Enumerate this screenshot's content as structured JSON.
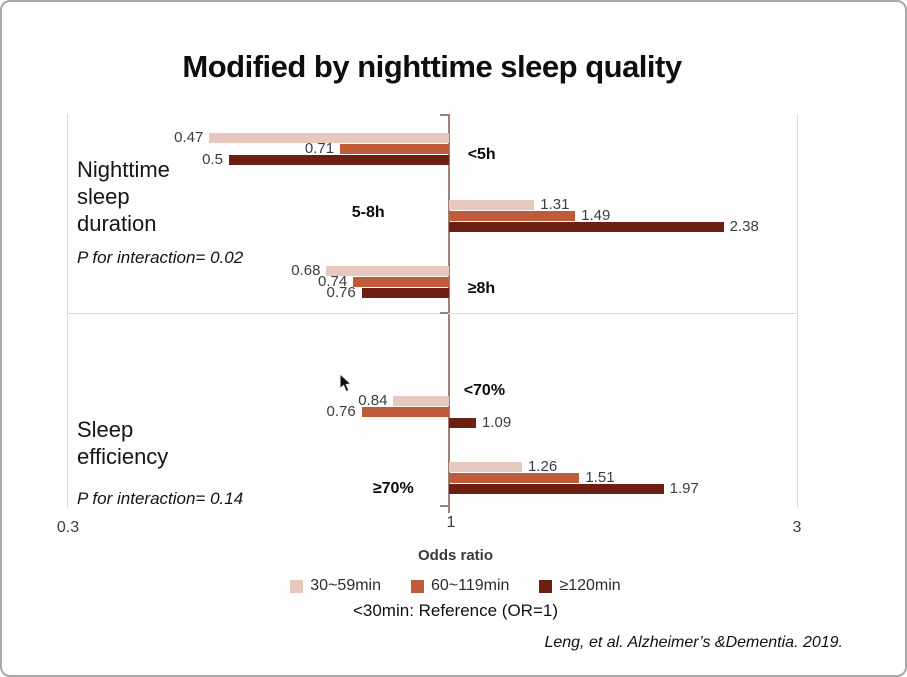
{
  "slide": {
    "title": "Modified by nighttime sleep quality",
    "note_reference": "<30min: Reference (OR=1)",
    "citation": "Leng, et al. Alzheimer’s &Dementia. 2019."
  },
  "panels": [
    {
      "label": "Nighttime\nsleep\nduration",
      "p_text": "P for interaction= 0.02"
    },
    {
      "label": "Sleep\nefficiency",
      "p_text": "P for interaction= 0.14"
    }
  ],
  "chart_data": {
    "type": "bar",
    "orientation": "horizontal",
    "x_scale": "log",
    "xlim": [
      0.3,
      3
    ],
    "x_reference": 1,
    "x_ticks": [
      "0.3",
      "1",
      "3"
    ],
    "xlabel": "Odds ratio",
    "legend_position": "bottom",
    "grid": "vertical-ends-only",
    "categories": [
      "<5h",
      "5-8h",
      "≥8h",
      "<70%",
      "≥70%"
    ],
    "category_panels": [
      "Nighttime sleep duration",
      "Nighttime sleep duration",
      "Nighttime sleep duration",
      "Sleep efficiency",
      "Sleep efficiency"
    ],
    "series": [
      {
        "name": "30~59min",
        "color": "#e6c8bf",
        "values": [
          0.47,
          1.31,
          0.68,
          0.84,
          1.26
        ]
      },
      {
        "name": "60~119min",
        "color": "#bf5b3b",
        "values": [
          0.71,
          1.49,
          0.74,
          0.76,
          1.51
        ]
      },
      {
        "name": "≥120min",
        "color": "#6d2011",
        "values": [
          0.5,
          2.38,
          0.76,
          1.09,
          1.97
        ]
      }
    ]
  }
}
